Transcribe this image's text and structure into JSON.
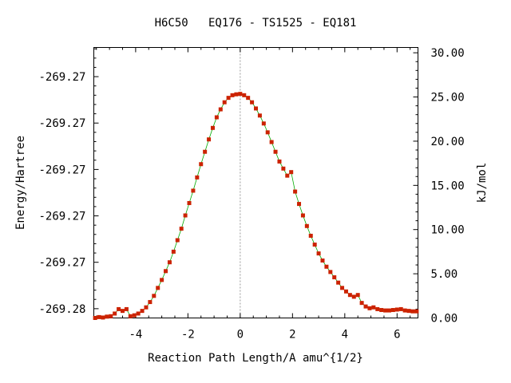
{
  "chart_data": {
    "type": "line",
    "title": "H6C50   EQ176 - TS1525 - EQ181",
    "xlabel": "Reaction Path Length/A amu^{1/2}",
    "ylabel": "Energy/Hartree",
    "y2label": "kJ/mol",
    "xlim": [
      -5.6,
      6.8
    ],
    "y2lim": [
      0,
      30.6
    ],
    "x_ticks": [
      -4,
      -2,
      0,
      2,
      4,
      6
    ],
    "x_tick_labels": [
      "-4",
      "-2",
      "0",
      "2",
      "4",
      "6"
    ],
    "y_tick_positions_kJ": [
      1.05,
      6.3,
      11.55,
      16.8,
      22.05,
      27.3
    ],
    "y_tick_labels": [
      "-269.28",
      "-269.27",
      "-269.27",
      "-269.27",
      "-269.27",
      "-269.27"
    ],
    "y2_ticks": [
      0,
      5,
      10,
      15,
      20,
      25,
      30
    ],
    "y2_tick_labels": [
      "0.00",
      "5.00",
      "10.00",
      "15.00",
      "20.00",
      "25.00",
      "30.00"
    ],
    "ts_marker_x": 0,
    "colors": {
      "line": "#00aa00",
      "point": "#cc2200",
      "ts_marker": "#999999"
    },
    "series": [
      {
        "x": [
          -5.55,
          -5.4,
          -5.25,
          -5.1,
          -4.95,
          -4.8,
          -4.65,
          -4.5,
          -4.35,
          -4.2,
          -4.05,
          -3.9,
          -3.75,
          -3.6,
          -3.45,
          -3.3,
          -3.15,
          -3.0,
          -2.85,
          -2.7,
          -2.55,
          -2.4,
          -2.25,
          -2.1,
          -1.95,
          -1.8,
          -1.65,
          -1.5,
          -1.35,
          -1.2,
          -1.05,
          -0.9,
          -0.75,
          -0.6,
          -0.45,
          -0.3,
          -0.15,
          0.0,
          0.15,
          0.3,
          0.45,
          0.6,
          0.75,
          0.9,
          1.05,
          1.2,
          1.35,
          1.5,
          1.65,
          1.8,
          1.95,
          2.1,
          2.25,
          2.4,
          2.55,
          2.7,
          2.85,
          3.0,
          3.15,
          3.3,
          3.45,
          3.6,
          3.75,
          3.9,
          4.05,
          4.2,
          4.35,
          4.5,
          4.65,
          4.8,
          4.95,
          5.1,
          5.25,
          5.4,
          5.55,
          5.7,
          5.85,
          6.0,
          6.15,
          6.3,
          6.45,
          6.6,
          6.75
        ],
        "values": [
          0.0,
          0.1,
          0.05,
          0.15,
          0.2,
          0.5,
          1.0,
          0.8,
          1.0,
          0.2,
          0.3,
          0.5,
          0.8,
          1.2,
          1.8,
          2.5,
          3.4,
          4.3,
          5.3,
          6.3,
          7.5,
          8.8,
          10.1,
          11.6,
          13.0,
          14.4,
          15.9,
          17.4,
          18.8,
          20.2,
          21.5,
          22.7,
          23.6,
          24.4,
          24.9,
          25.2,
          25.3,
          25.35,
          25.2,
          24.9,
          24.4,
          23.7,
          22.9,
          22.0,
          21.0,
          19.9,
          18.8,
          17.7,
          16.9,
          16.1,
          16.5,
          14.3,
          12.9,
          11.6,
          10.4,
          9.3,
          8.3,
          7.3,
          6.5,
          5.8,
          5.2,
          4.6,
          4.0,
          3.4,
          3.0,
          2.6,
          2.4,
          2.6,
          1.7,
          1.3,
          1.1,
          1.2,
          1.0,
          0.9,
          0.85,
          0.85,
          0.9,
          0.95,
          1.0,
          0.85,
          0.8,
          0.75,
          0.75
        ]
      }
    ]
  }
}
